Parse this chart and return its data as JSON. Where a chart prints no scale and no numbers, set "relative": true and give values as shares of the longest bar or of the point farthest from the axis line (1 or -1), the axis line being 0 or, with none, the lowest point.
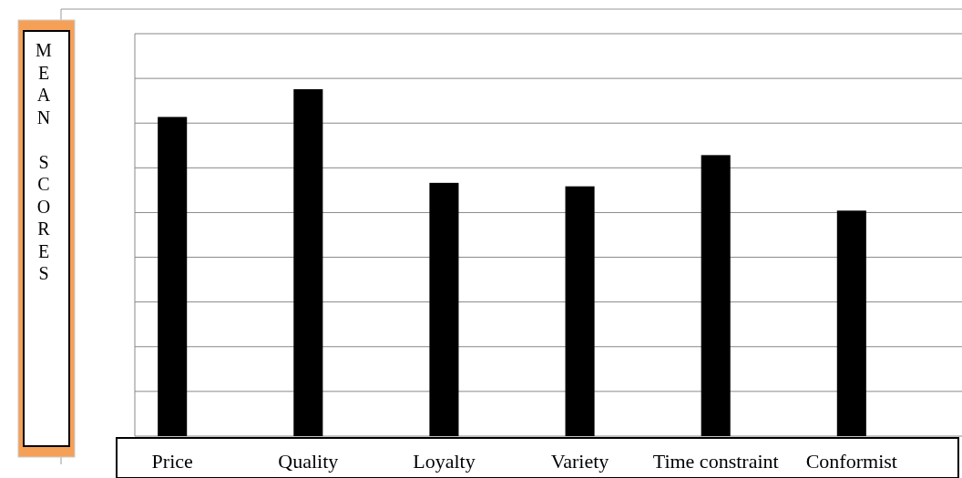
{
  "chart_data": {
    "type": "bar",
    "ylabel": "MEAN SCORES",
    "categories": [
      "Price",
      "Quality",
      "Loyalty",
      "Variety",
      "Time constraint",
      "Conformist"
    ],
    "values": [
      0.92,
      1,
      0.73,
      0.72,
      0.81,
      0.65
    ],
    "color": "#000000",
    "relative": true,
    "grid": true
  }
}
